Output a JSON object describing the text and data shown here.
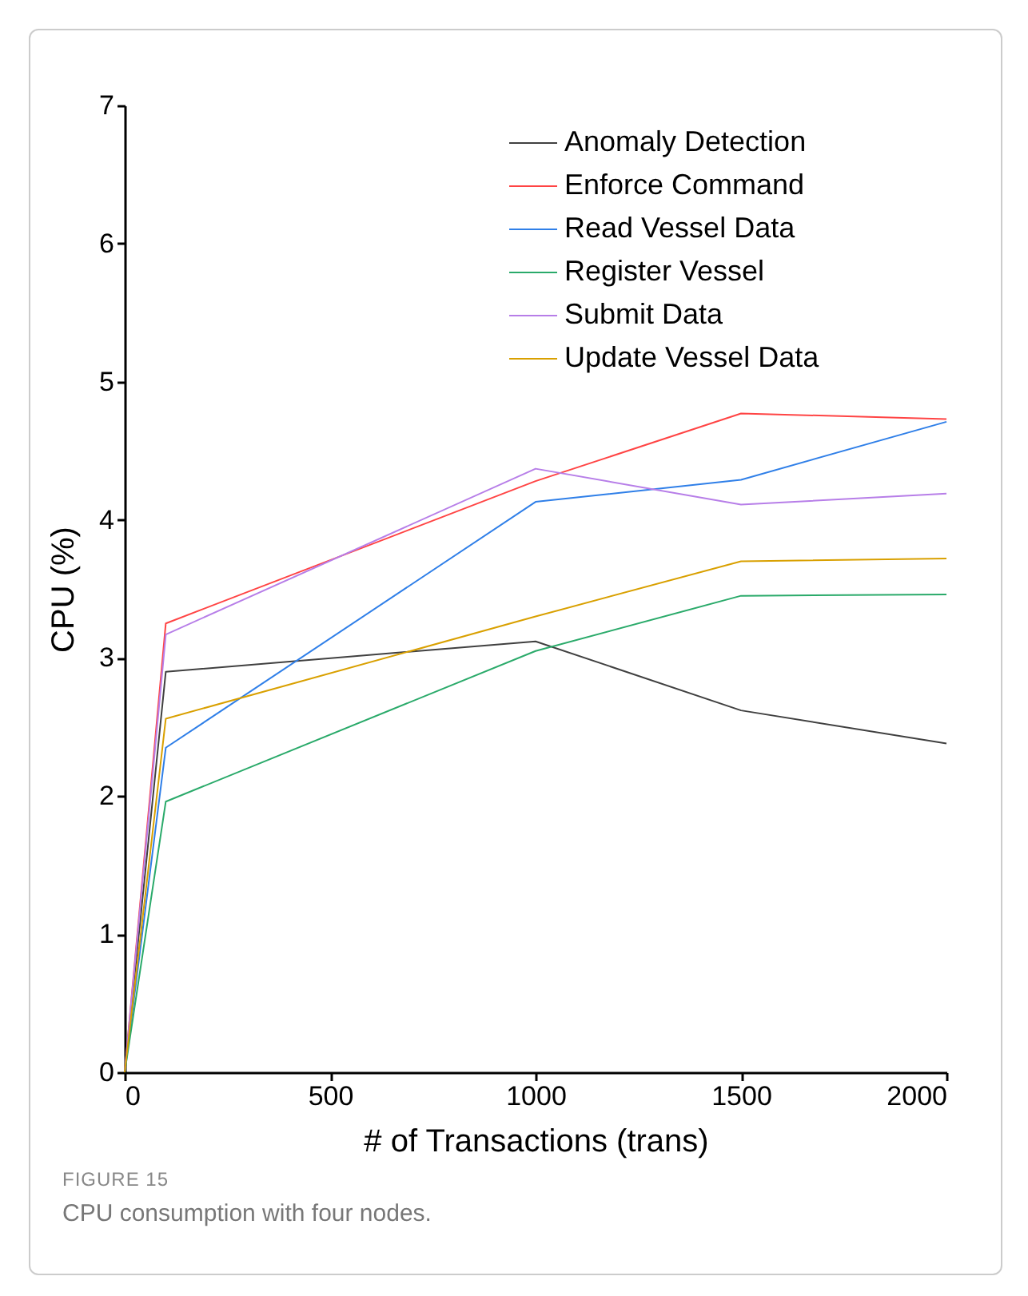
{
  "chart_data": {
    "type": "line",
    "xlabel": "# of Transactions (trans)",
    "ylabel": "CPU (%)",
    "x": [
      0,
      100,
      1000,
      1500,
      2000
    ],
    "xlim": [
      0,
      2000
    ],
    "xticks": [
      0,
      500,
      1000,
      1500,
      2000
    ],
    "ylim": [
      0,
      7
    ],
    "yticks": [
      0,
      1,
      2,
      3,
      4,
      5,
      6,
      7
    ],
    "legend": "top right",
    "grid": false,
    "marker": "none",
    "line_style": "solid",
    "series": [
      {
        "name": "Anomaly Detection",
        "color": "#404040",
        "values": [
          0,
          2.9,
          3.12,
          2.62,
          2.38
        ]
      },
      {
        "name": "Enforce Command",
        "color": "#ff4444",
        "values": [
          0,
          3.25,
          4.28,
          4.77,
          4.73
        ]
      },
      {
        "name": "Read Vessel Data",
        "color": "#2f7fe8",
        "values": [
          0,
          2.35,
          4.13,
          4.29,
          4.71
        ]
      },
      {
        "name": "Register Vessel",
        "color": "#2aaa6a",
        "values": [
          0,
          1.96,
          3.05,
          3.45,
          3.46
        ]
      },
      {
        "name": "Submit Data",
        "color": "#b77ee8",
        "values": [
          0,
          3.17,
          4.37,
          4.11,
          4.19
        ]
      },
      {
        "name": "Update Vessel Data",
        "color": "#d9a000",
        "values": [
          0,
          2.56,
          3.3,
          3.7,
          3.72
        ]
      }
    ],
    "annotations": [
      "FIGURE 15",
      "CPU consumption with four nodes."
    ]
  }
}
